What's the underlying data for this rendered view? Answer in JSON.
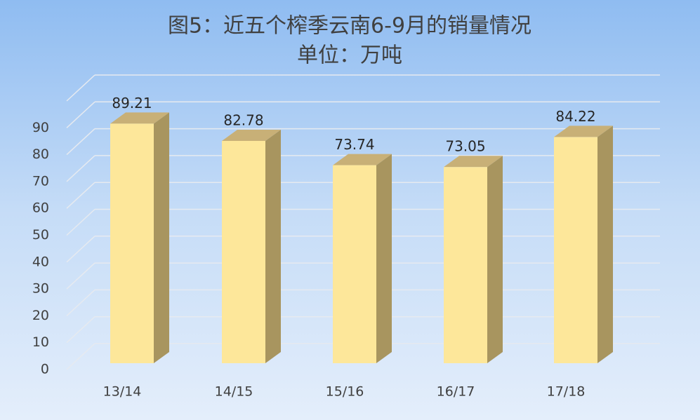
{
  "chart_data": {
    "type": "bar3d",
    "title": "图5：近五个榨季云南6-9月的销量情况",
    "subtitle": "单位：万吨",
    "categories": [
      "13/14",
      "14/15",
      "15/16",
      "16/17",
      "17/18"
    ],
    "values": [
      89.21,
      82.78,
      73.74,
      73.05,
      84.22
    ],
    "color": "#fde79a",
    "ylim": [
      0,
      100
    ],
    "yticks": [
      0,
      10,
      20,
      30,
      40,
      50,
      60,
      70,
      80,
      90
    ],
    "grid": true
  }
}
